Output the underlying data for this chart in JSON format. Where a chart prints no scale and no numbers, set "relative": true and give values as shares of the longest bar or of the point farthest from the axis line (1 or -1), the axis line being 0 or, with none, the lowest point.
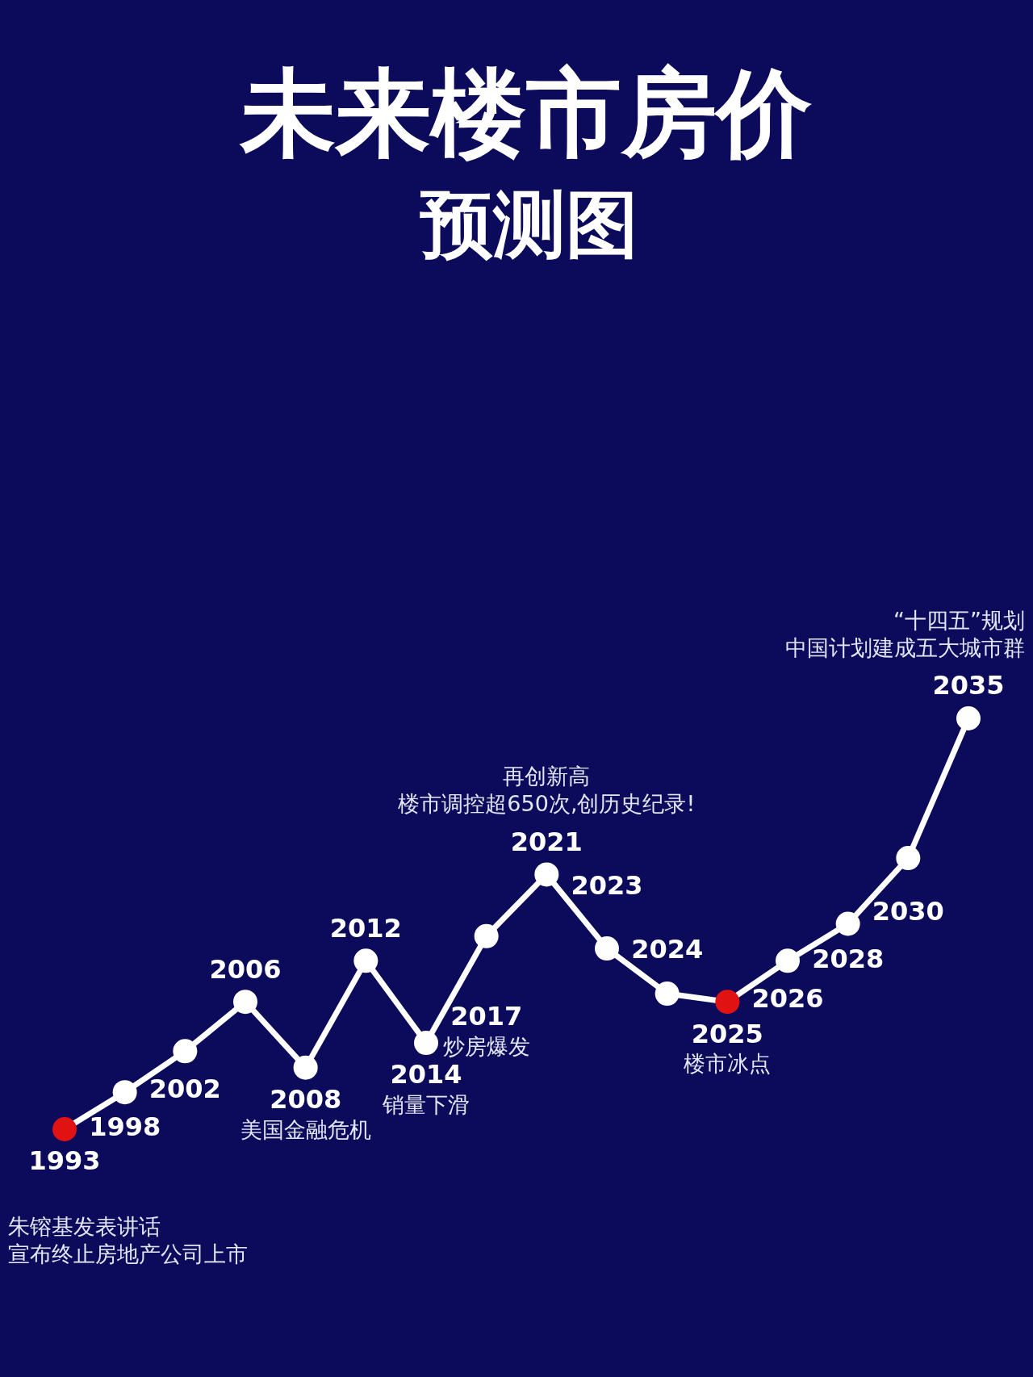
{
  "chart_data": {
    "type": "line",
    "title": "未来楼市房价",
    "subtitle": "预测图",
    "categories": [
      null,
      null,
      null,
      null,
      null,
      null,
      null,
      null,
      null,
      null,
      null,
      null,
      null,
      null,
      null,
      null
    ],
    "series": [
      {
        "color": "#ffffff",
        "colors": [
          "#e01212",
          "#ffffff",
          "#ffffff",
          "#ffffff",
          "#ffffff",
          "#ffffff",
          "#ffffff",
          "#ffffff",
          "#ffffff",
          "#ffffff",
          "#ffffff",
          "#e01212",
          "#ffffff",
          "#ffffff",
          "#ffffff",
          "#ffffff"
        ],
        "values": [
          0,
          0.09,
          0.19,
          0.31,
          0.15,
          0.41,
          0.21,
          0.47,
          0.62,
          0.44,
          0.33,
          0.31,
          0.41,
          0.5,
          0.66,
          1
        ]
      }
    ],
    "relative": true,
    "marker": "circle",
    "line_style": "solid",
    "grid": false,
    "legend": false,
    "annotations": [
      {
        "text": "1993",
        "y": 0
      },
      "朱镕基发表讲话",
      "宣布终止房地产公司上市",
      {
        "text": "1998",
        "y": 0.09
      },
      {
        "text": "2002",
        "y": 0.19
      },
      {
        "text": "2006",
        "y": 0.31
      },
      {
        "text": "2008",
        "y": 0.15
      },
      "美国金融危机",
      {
        "text": "2012",
        "y": 0.41
      },
      {
        "text": "2014",
        "y": 0.21
      },
      "销量下滑",
      {
        "text": "2017",
        "y": 0.47
      },
      "炒房爆发",
      {
        "text": "2021",
        "y": 0.62
      },
      "再创新高",
      "楼市调控超650次,创历史纪录!",
      {
        "text": "2023",
        "y": 0.44
      },
      {
        "text": "2024",
        "y": 0.33
      },
      {
        "text": "2025",
        "y": 0.31
      },
      "楼市冰点",
      {
        "text": "2026",
        "y": 0.41
      },
      {
        "text": "2028",
        "y": 0.5
      },
      {
        "text": "2030",
        "y": 0.66
      },
      {
        "text": "2035",
        "y": 1
      },
      "“十四五”规划",
      "中国计划建成五大城市群"
    ]
  }
}
